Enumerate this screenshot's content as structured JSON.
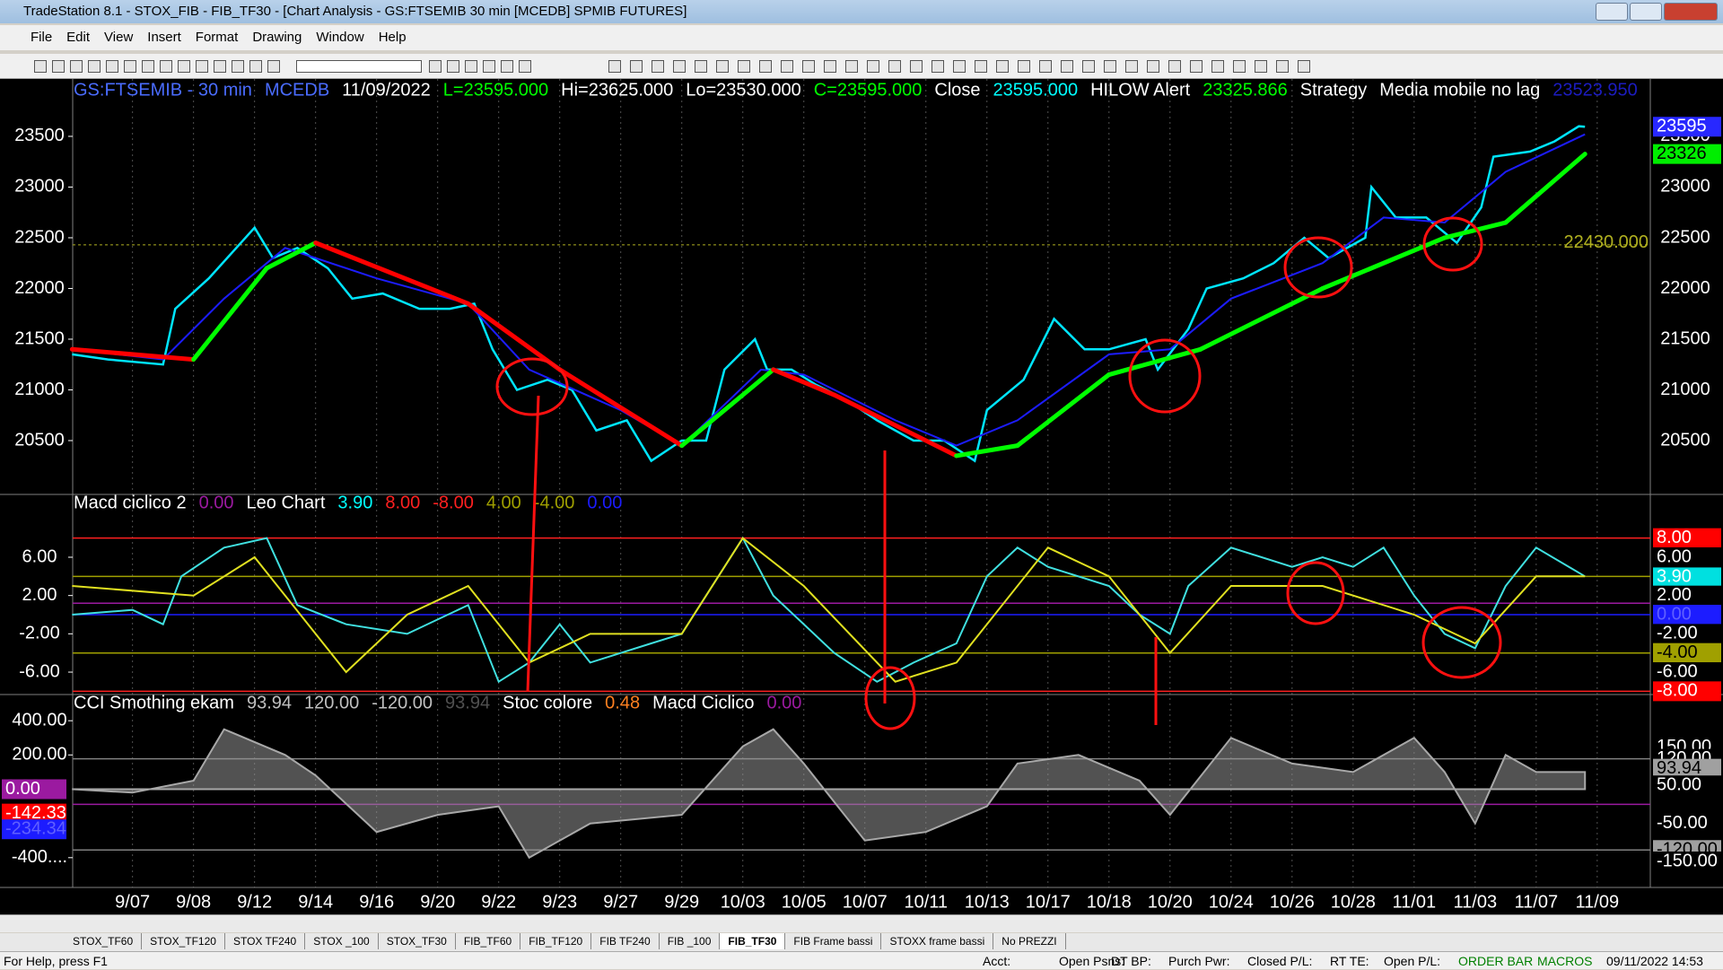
{
  "window": {
    "title": "TradeStation 8.1 - STOX_FIB - FIB_TF30 - [Chart Analysis - GS:FTSEMIB  30 min  [MCEDB] SPMIB FUTURES]"
  },
  "menu": [
    "File",
    "Edit",
    "View",
    "Insert",
    "Format",
    "Drawing",
    "Window",
    "Help"
  ],
  "chart_data": {
    "type": "line",
    "categories": [
      "9/07",
      "9/08",
      "9/12",
      "9/14",
      "9/16",
      "9/20",
      "9/22",
      "9/23",
      "9/27",
      "9/29",
      "10/03",
      "10/05",
      "10/07",
      "10/11",
      "10/13",
      "10/17",
      "10/18",
      "10/20",
      "10/24",
      "10/26",
      "10/28",
      "11/01",
      "11/03",
      "11/07",
      "11/09"
    ],
    "xlim": [
      -0.98,
      24.87
    ],
    "panels": [
      {
        "header": [
          {
            "text": "GS:FTSEMIB - 30 min",
            "color": "#4a6cff"
          },
          {
            "text": "MCEDB",
            "color": "#4a6cff"
          },
          {
            "text": "11/09/2022",
            "color": "#ffffff"
          },
          {
            "text": "L=23595.000",
            "color": "#00ff00"
          },
          {
            "text": "Hi=23625.000",
            "color": "#ffffff"
          },
          {
            "text": "Lo=23530.000",
            "color": "#ffffff"
          },
          {
            "text": "C=23595.000",
            "color": "#00ff00"
          },
          {
            "text": "Close",
            "color": "#ffffff"
          },
          {
            "text": "23595.000",
            "color": "#00ffff"
          },
          {
            "text": "HILOW Alert",
            "color": "#ffffff"
          },
          {
            "text": "23325.866",
            "color": "#00ff00"
          },
          {
            "text": "Strategy",
            "color": "#ffffff"
          },
          {
            "text": "Media mobile no lag",
            "color": "#ffffff"
          },
          {
            "text": "23523.950",
            "color": "#1c1cc0"
          }
        ],
        "ylim": [
          19969,
          24066
        ],
        "yticks": [
          23500,
          23000,
          22500,
          22000,
          21500,
          21000,
          20500
        ],
        "right_labels": [
          {
            "value": 23595,
            "label": "23595",
            "bg": "#2828ff",
            "fg": "#ffffff"
          },
          {
            "value": 23326,
            "label": "23326",
            "bg": "#00ee00",
            "fg": "#000000"
          }
        ],
        "level": {
          "value": 22430,
          "label": "22430.000",
          "color": "#b0b020"
        },
        "series": [
          {
            "name": "Close",
            "color": "#00e5ff",
            "x": [
              -0.99,
              -0.4,
              0.5,
              0.7,
              1.25,
              1.7,
              2,
              2.3,
              2.7,
              3.2,
              3.6,
              4.1,
              4.7,
              5.2,
              5.6,
              5.9,
              6.3,
              6.8,
              7.2,
              7.6,
              8.1,
              8.5,
              9,
              9.4,
              9.7,
              10.2,
              10.4,
              10.8,
              11.2,
              11.7,
              12.2,
              12.8,
              13.3,
              13.8,
              14,
              14.6,
              15.1,
              15.6,
              16,
              16.6,
              16.8,
              17.3,
              17.6,
              18.2,
              18.7,
              19.2,
              19.6,
              20.2,
              20.3,
              20.7,
              21.2,
              21.7,
              22.1,
              22.3,
              22.9,
              23.3,
              23.7,
              23.8
            ],
            "values": [
              21350,
              21300,
              21250,
              21800,
              22100,
              22400,
              22600,
              22300,
              22400,
              22200,
              21900,
              21950,
              21800,
              21800,
              21850,
              21400,
              21000,
              21100,
              21000,
              20600,
              20700,
              20300,
              20500,
              20500,
              21200,
              21500,
              21200,
              21200,
              21050,
              20900,
              20700,
              20500,
              20500,
              20300,
              20800,
              21100,
              21700,
              21400,
              21400,
              21500,
              21200,
              21600,
              22000,
              22100,
              22250,
              22500,
              22300,
              22500,
              23000,
              22700,
              22700,
              22450,
              22800,
              23300,
              23350,
              23450,
              23600,
              23595
            ]
          },
          {
            "name": "Media mobile no lag",
            "color": "#1c1cff",
            "x": [
              -0.99,
              0.5,
              1.5,
              2.5,
              4,
              5.5,
              6.5,
              8,
              9,
              10.3,
              11,
              12.5,
              13.5,
              14.5,
              16,
              17,
              18,
              19.5,
              20.5,
              21.5,
              22.5,
              23.8
            ],
            "values": [
              21400,
              21300,
              21900,
              22400,
              22100,
              21850,
              21200,
              20800,
              20450,
              21200,
              21150,
              20700,
              20450,
              20700,
              21350,
              21400,
              21900,
              22250,
              22700,
              22650,
              23150,
              23520
            ]
          },
          {
            "name": "HILOW Alert",
            "up_color": "#00ff00",
            "down_color": "#ff0000",
            "width": 5,
            "x": [
              -0.99,
              1,
              2.2,
              3,
              5.5,
              7,
              9,
              10.5,
              11.5,
              13.5,
              14.5,
              16,
              17.5,
              19.5,
              21.5,
              22.5,
              23.8
            ],
            "values": [
              21400,
              21300,
              22200,
              22450,
              21850,
              21200,
              20450,
              21200,
              20950,
              20350,
              20450,
              21150,
              21400,
              22000,
              22500,
              22650,
              23326
            ]
          }
        ]
      },
      {
        "header": [
          {
            "text": "Macd ciclico 2",
            "color": "#ffffff"
          },
          {
            "text": "0.00",
            "color": "#9b1aa0"
          },
          {
            "text": "Leo Chart",
            "color": "#ffffff"
          },
          {
            "text": "3.90",
            "color": "#00ffff"
          },
          {
            "text": "8.00",
            "color": "#ff2020"
          },
          {
            "text": "-8.00",
            "color": "#ff2020"
          },
          {
            "text": "4.00",
            "color": "#a0a000"
          },
          {
            "text": "-4.00",
            "color": "#a0a000"
          },
          {
            "text": "0.00",
            "color": "#1c1cff"
          }
        ],
        "ylim": [
          -8.34,
          12.56
        ],
        "yticks": [
          {
            "value": 6,
            "label": "6.00"
          },
          {
            "value": 2,
            "label": "2.00"
          },
          {
            "value": -2,
            "label": "-2.00"
          },
          {
            "value": -6,
            "label": "-6.00"
          }
        ],
        "hlines": [
          {
            "value": 8,
            "color": "#ff2020"
          },
          {
            "value": 4,
            "color": "#a0a000"
          },
          {
            "value": 1.2,
            "color": "#9b1aa0"
          },
          {
            "value": 0,
            "color": "#1c1cff"
          },
          {
            "value": -4,
            "color": "#a0a000"
          },
          {
            "value": -8,
            "color": "#ff2020"
          }
        ],
        "right_labels": [
          {
            "value": 8,
            "label": "8.00",
            "bg": "#ff0000",
            "fg": "#ffffff"
          },
          {
            "value": 6,
            "label": "6.00",
            "bg": "#000000",
            "fg": "#ffffff"
          },
          {
            "value": 3.9,
            "label": "3.90",
            "bg": "#00e0e0",
            "fg": "#ffffff"
          },
          {
            "value": 2,
            "label": "2.00",
            "bg": "#000000",
            "fg": "#ffffff"
          },
          {
            "value": 0,
            "label": "0.00",
            "bg": "#1c1cff",
            "fg": "#6060ff"
          },
          {
            "value": -2,
            "label": "-2.00",
            "bg": "#000000",
            "fg": "#ffffff"
          },
          {
            "value": -4,
            "label": "-4.00",
            "bg": "#a0a000",
            "fg": "#000000"
          },
          {
            "value": -6,
            "label": "-6.00",
            "bg": "#000000",
            "fg": "#ffffff"
          },
          {
            "value": -8,
            "label": "-8.00",
            "bg": "#ff0000",
            "fg": "#ffffff"
          }
        ],
        "series": [
          {
            "name": "Leo Chart",
            "color": "#40e0e0",
            "x": [
              -0.99,
              0,
              0.5,
              0.8,
              1.5,
              2.2,
              2.7,
              3.5,
              4.5,
              5.5,
              6,
              6.5,
              7,
              7.5,
              8.5,
              9,
              9.5,
              10,
              10.5,
              11.5,
              12.2,
              12.8,
              13.5,
              14,
              14.5,
              15,
              16,
              16.5,
              17,
              17.3,
              18,
              19,
              19.5,
              20,
              20.5,
              21,
              21.5,
              22,
              22.5,
              23,
              23.8
            ],
            "values": [
              0,
              0.5,
              -1,
              4,
              7,
              8,
              1,
              -1,
              -2,
              1,
              -7,
              -5,
              -1,
              -5,
              -3,
              -2,
              3,
              8,
              2,
              -4,
              -7,
              -5,
              -3,
              4,
              7,
              5,
              3,
              0,
              -2,
              3,
              7,
              5,
              6,
              5,
              7,
              2,
              -2,
              -3.5,
              3,
              7,
              4
            ]
          },
          {
            "name": "Macd ciclico 2",
            "color": "#e0e020",
            "x": [
              -0.99,
              1,
              2,
              3.5,
              4.5,
              5.5,
              6.5,
              7.5,
              9,
              10,
              11,
              12.5,
              13.5,
              15,
              16,
              17,
              18,
              19.5,
              21,
              22,
              23,
              23.8
            ],
            "values": [
              3,
              2,
              6,
              -6,
              0,
              3,
              -5,
              -2,
              -2,
              8,
              3,
              -7,
              -5,
              7,
              4,
              -4,
              3,
              3,
              0,
              -3,
              4,
              4
            ]
          }
        ]
      },
      {
        "header": [
          {
            "text": "CCI Smothing ekam",
            "color": "#ffffff"
          },
          {
            "text": "93.94",
            "color": "#c0c0c0"
          },
          {
            "text": "120.00",
            "color": "#c0c0c0"
          },
          {
            "text": "-120.00",
            "color": "#c0c0c0"
          },
          {
            "text": "93.94",
            "color": "#505050"
          },
          {
            "text": "Stoc colore",
            "color": "#ffffff"
          },
          {
            "text": "0.48",
            "color": "#ff8020"
          },
          {
            "text": "Macd Ciclico",
            "color": "#ffffff"
          },
          {
            "text": "0.00",
            "color": "#9b1aa0"
          }
        ],
        "ylim": [
          -574,
          553
        ],
        "yticks": [
          {
            "value": 400,
            "label": "400.00"
          },
          {
            "value": 200,
            "label": "200.00"
          },
          {
            "value": -400,
            "label": "-400...."
          }
        ],
        "left_labels": [
          {
            "value": 0,
            "label": "0.00",
            "bg": "#9b1aa0",
            "fg": "#ffffff"
          },
          {
            "value": -142.33,
            "label": "-142.33",
            "bg": "#ff0000",
            "fg": "#ffffff"
          },
          {
            "value": -234.34,
            "label": "-234.34",
            "bg": "#1c1cff",
            "fg": "#6060ff"
          }
        ],
        "y2lim": [
          -218.5,
          289
        ],
        "right_labels": [
          {
            "value": 150,
            "label": "150.00",
            "bg": "#000000",
            "fg": "#ffffff"
          },
          {
            "value": 120,
            "label": "120.00",
            "bg": "#000000",
            "fg": "#ffffff"
          },
          {
            "value": 93.94,
            "label": "93.94",
            "bg": "#a0a0a0",
            "fg": "#000000"
          },
          {
            "value": 50,
            "label": "50.00",
            "bg": "#000000",
            "fg": "#ffffff"
          },
          {
            "value": -50,
            "label": "-50.00",
            "bg": "#000000",
            "fg": "#ffffff"
          },
          {
            "value": -120,
            "label": "-120.00",
            "bg": "#a0a0a0",
            "fg": "#000000"
          },
          {
            "value": -150,
            "label": "-150.00",
            "bg": "#000000",
            "fg": "#ffffff"
          }
        ],
        "hlines": [
          {
            "value": 120,
            "color": "#808080",
            "axis": "y2"
          },
          {
            "value": -120,
            "color": "#808080",
            "axis": "y2"
          },
          {
            "value": 0,
            "color": "#9b1aa0",
            "axis": "y2"
          }
        ],
        "series": [
          {
            "name": "CCI Smothing ekam",
            "color": "#a8a8a8",
            "area": true,
            "x": [
              -0.99,
              0,
              1,
              1.5,
              2.5,
              3,
              4,
              5,
              6,
              6.5,
              7.5,
              9,
              10,
              10.5,
              11,
              12,
              13,
              14,
              14.5,
              15.5,
              16.5,
              17,
              18,
              19,
              20,
              21,
              21.5,
              22,
              22.5,
              23,
              23.8
            ],
            "values": [
              0,
              -20,
              50,
              350,
              200,
              80,
              -250,
              -150,
              -100,
              -400,
              -200,
              -150,
              250,
              350,
              150,
              -300,
              -250,
              -100,
              150,
              200,
              50,
              -150,
              300,
              150,
              100,
              300,
              100,
              -200,
              200,
              100,
              100
            ]
          }
        ]
      }
    ]
  },
  "tabs": [
    "STOX_TF60",
    "STOX_TF120",
    "STOX TF240",
    "STOX _100",
    "STOX_TF30",
    "FIB_TF60",
    "FIB_TF120",
    "FIB TF240",
    "FIB _100",
    "FIB_TF30",
    "FIB Frame bassi",
    "STOXX frame bassi",
    "No PREZZI"
  ],
  "active_tab": 9,
  "status": {
    "help": "For Help, press F1",
    "fields": [
      "Acct:",
      "Open Psns:",
      "DT BP:",
      "Purch Pwr:",
      "Closed P/L:",
      "RT TE:",
      "Open P/L:"
    ],
    "order_bar": "ORDER BAR",
    "macros": "MACROS",
    "clock": "09/11/2022 14:53"
  }
}
